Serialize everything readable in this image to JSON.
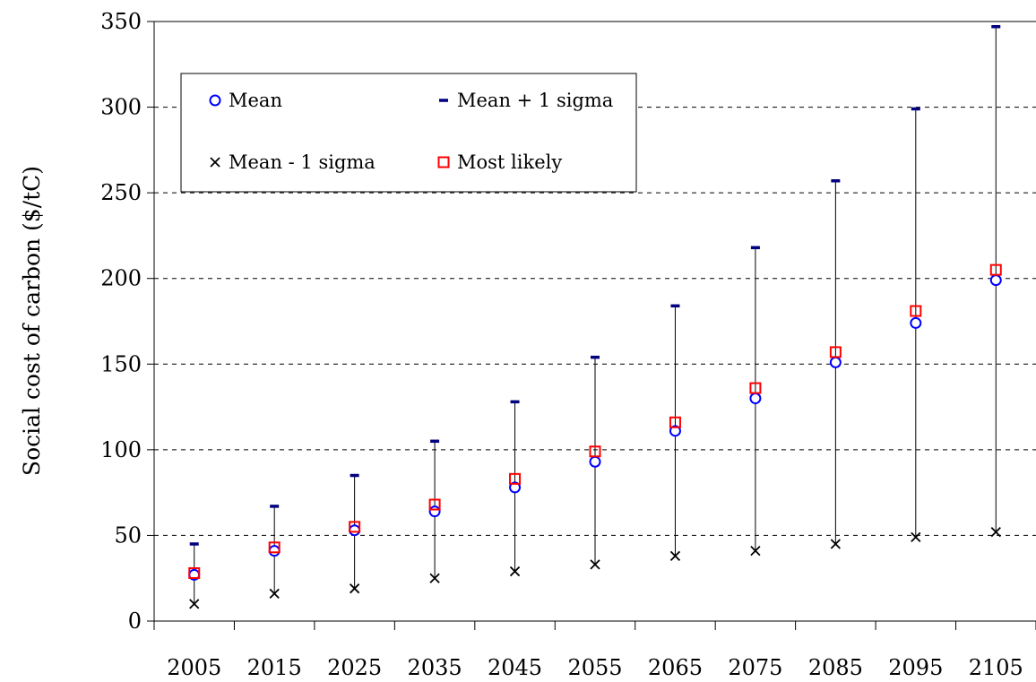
{
  "chart_data": {
    "type": "scatter",
    "title": "",
    "xlabel": "",
    "ylabel": "Social cost of carbon ($/tC)",
    "categories": [
      "2005",
      "2015",
      "2025",
      "2035",
      "2045",
      "2055",
      "2065",
      "2075",
      "2085",
      "2095",
      "2105"
    ],
    "ylim": [
      0,
      350
    ],
    "yticks": [
      0,
      50,
      100,
      150,
      200,
      250,
      300,
      350
    ],
    "grid": "horizontal-dashed",
    "legend_position": "top-left",
    "series": [
      {
        "name": "Mean",
        "marker": "circle",
        "color": "#0000ff",
        "values": [
          27,
          41,
          53,
          64,
          78,
          93,
          111,
          130,
          151,
          174,
          199
        ]
      },
      {
        "name": "Mean + 1 sigma",
        "marker": "dash",
        "color": "#000080",
        "values": [
          45,
          67,
          85,
          105,
          128,
          154,
          184,
          218,
          257,
          299,
          347
        ]
      },
      {
        "name": "Mean - 1 sigma",
        "marker": "x",
        "color": "#000000",
        "values": [
          10,
          16,
          19,
          25,
          29,
          33,
          38,
          41,
          45,
          49,
          52
        ]
      },
      {
        "name": "Most likely",
        "marker": "square",
        "color": "#ff0000",
        "values": [
          28,
          43,
          55,
          68,
          83,
          99,
          116,
          136,
          157,
          181,
          205
        ]
      }
    ]
  }
}
